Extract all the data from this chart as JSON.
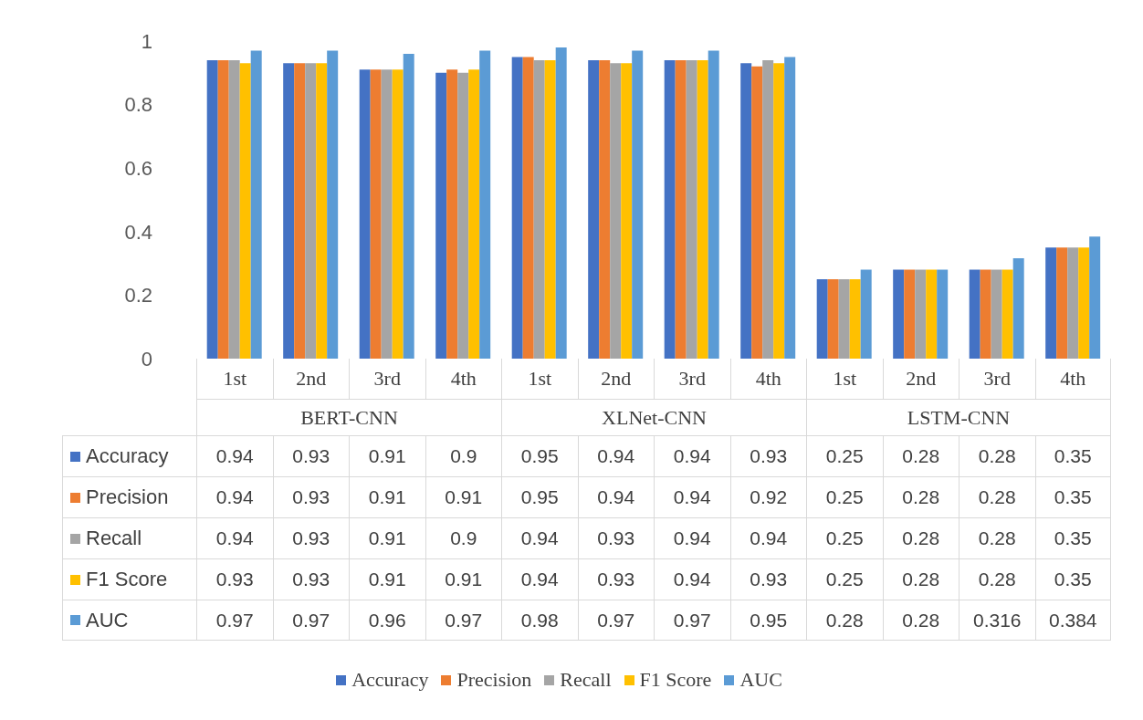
{
  "chart_data": {
    "type": "bar",
    "categories": [
      "1st",
      "2nd",
      "3rd",
      "4th",
      "1st",
      "2nd",
      "3rd",
      "4th",
      "1st",
      "2nd",
      "3rd",
      "4th"
    ],
    "annotations": [
      "BERT-CNN",
      "XLNet-CNN",
      "LSTM-CNN"
    ],
    "series": [
      {
        "name": "Accuracy",
        "color": "#4472c4",
        "values": [
          0.94,
          0.93,
          0.91,
          0.9,
          0.95,
          0.94,
          0.94,
          0.93,
          0.25,
          0.28,
          0.28,
          0.35
        ]
      },
      {
        "name": "Precision",
        "color": "#ed7d31",
        "values": [
          0.94,
          0.93,
          0.91,
          0.91,
          0.95,
          0.94,
          0.94,
          0.92,
          0.25,
          0.28,
          0.28,
          0.35
        ]
      },
      {
        "name": "Recall",
        "color": "#a5a5a5",
        "values": [
          0.94,
          0.93,
          0.91,
          0.9,
          0.94,
          0.93,
          0.94,
          0.94,
          0.25,
          0.28,
          0.28,
          0.35
        ]
      },
      {
        "name": "F1 Score",
        "color": "#ffc000",
        "values": [
          0.93,
          0.93,
          0.91,
          0.91,
          0.94,
          0.93,
          0.94,
          0.93,
          0.25,
          0.28,
          0.28,
          0.35
        ]
      },
      {
        "name": "AUC",
        "color": "#5b9bd5",
        "values": [
          0.97,
          0.97,
          0.96,
          0.97,
          0.98,
          0.97,
          0.97,
          0.95,
          0.28,
          0.28,
          0.316,
          0.384
        ]
      }
    ],
    "ylim": [
      0,
      1
    ],
    "yticks": [
      0,
      0.2,
      0.4,
      0.6,
      0.8,
      1
    ],
    "data_labels": true,
    "legend": "bottom"
  }
}
